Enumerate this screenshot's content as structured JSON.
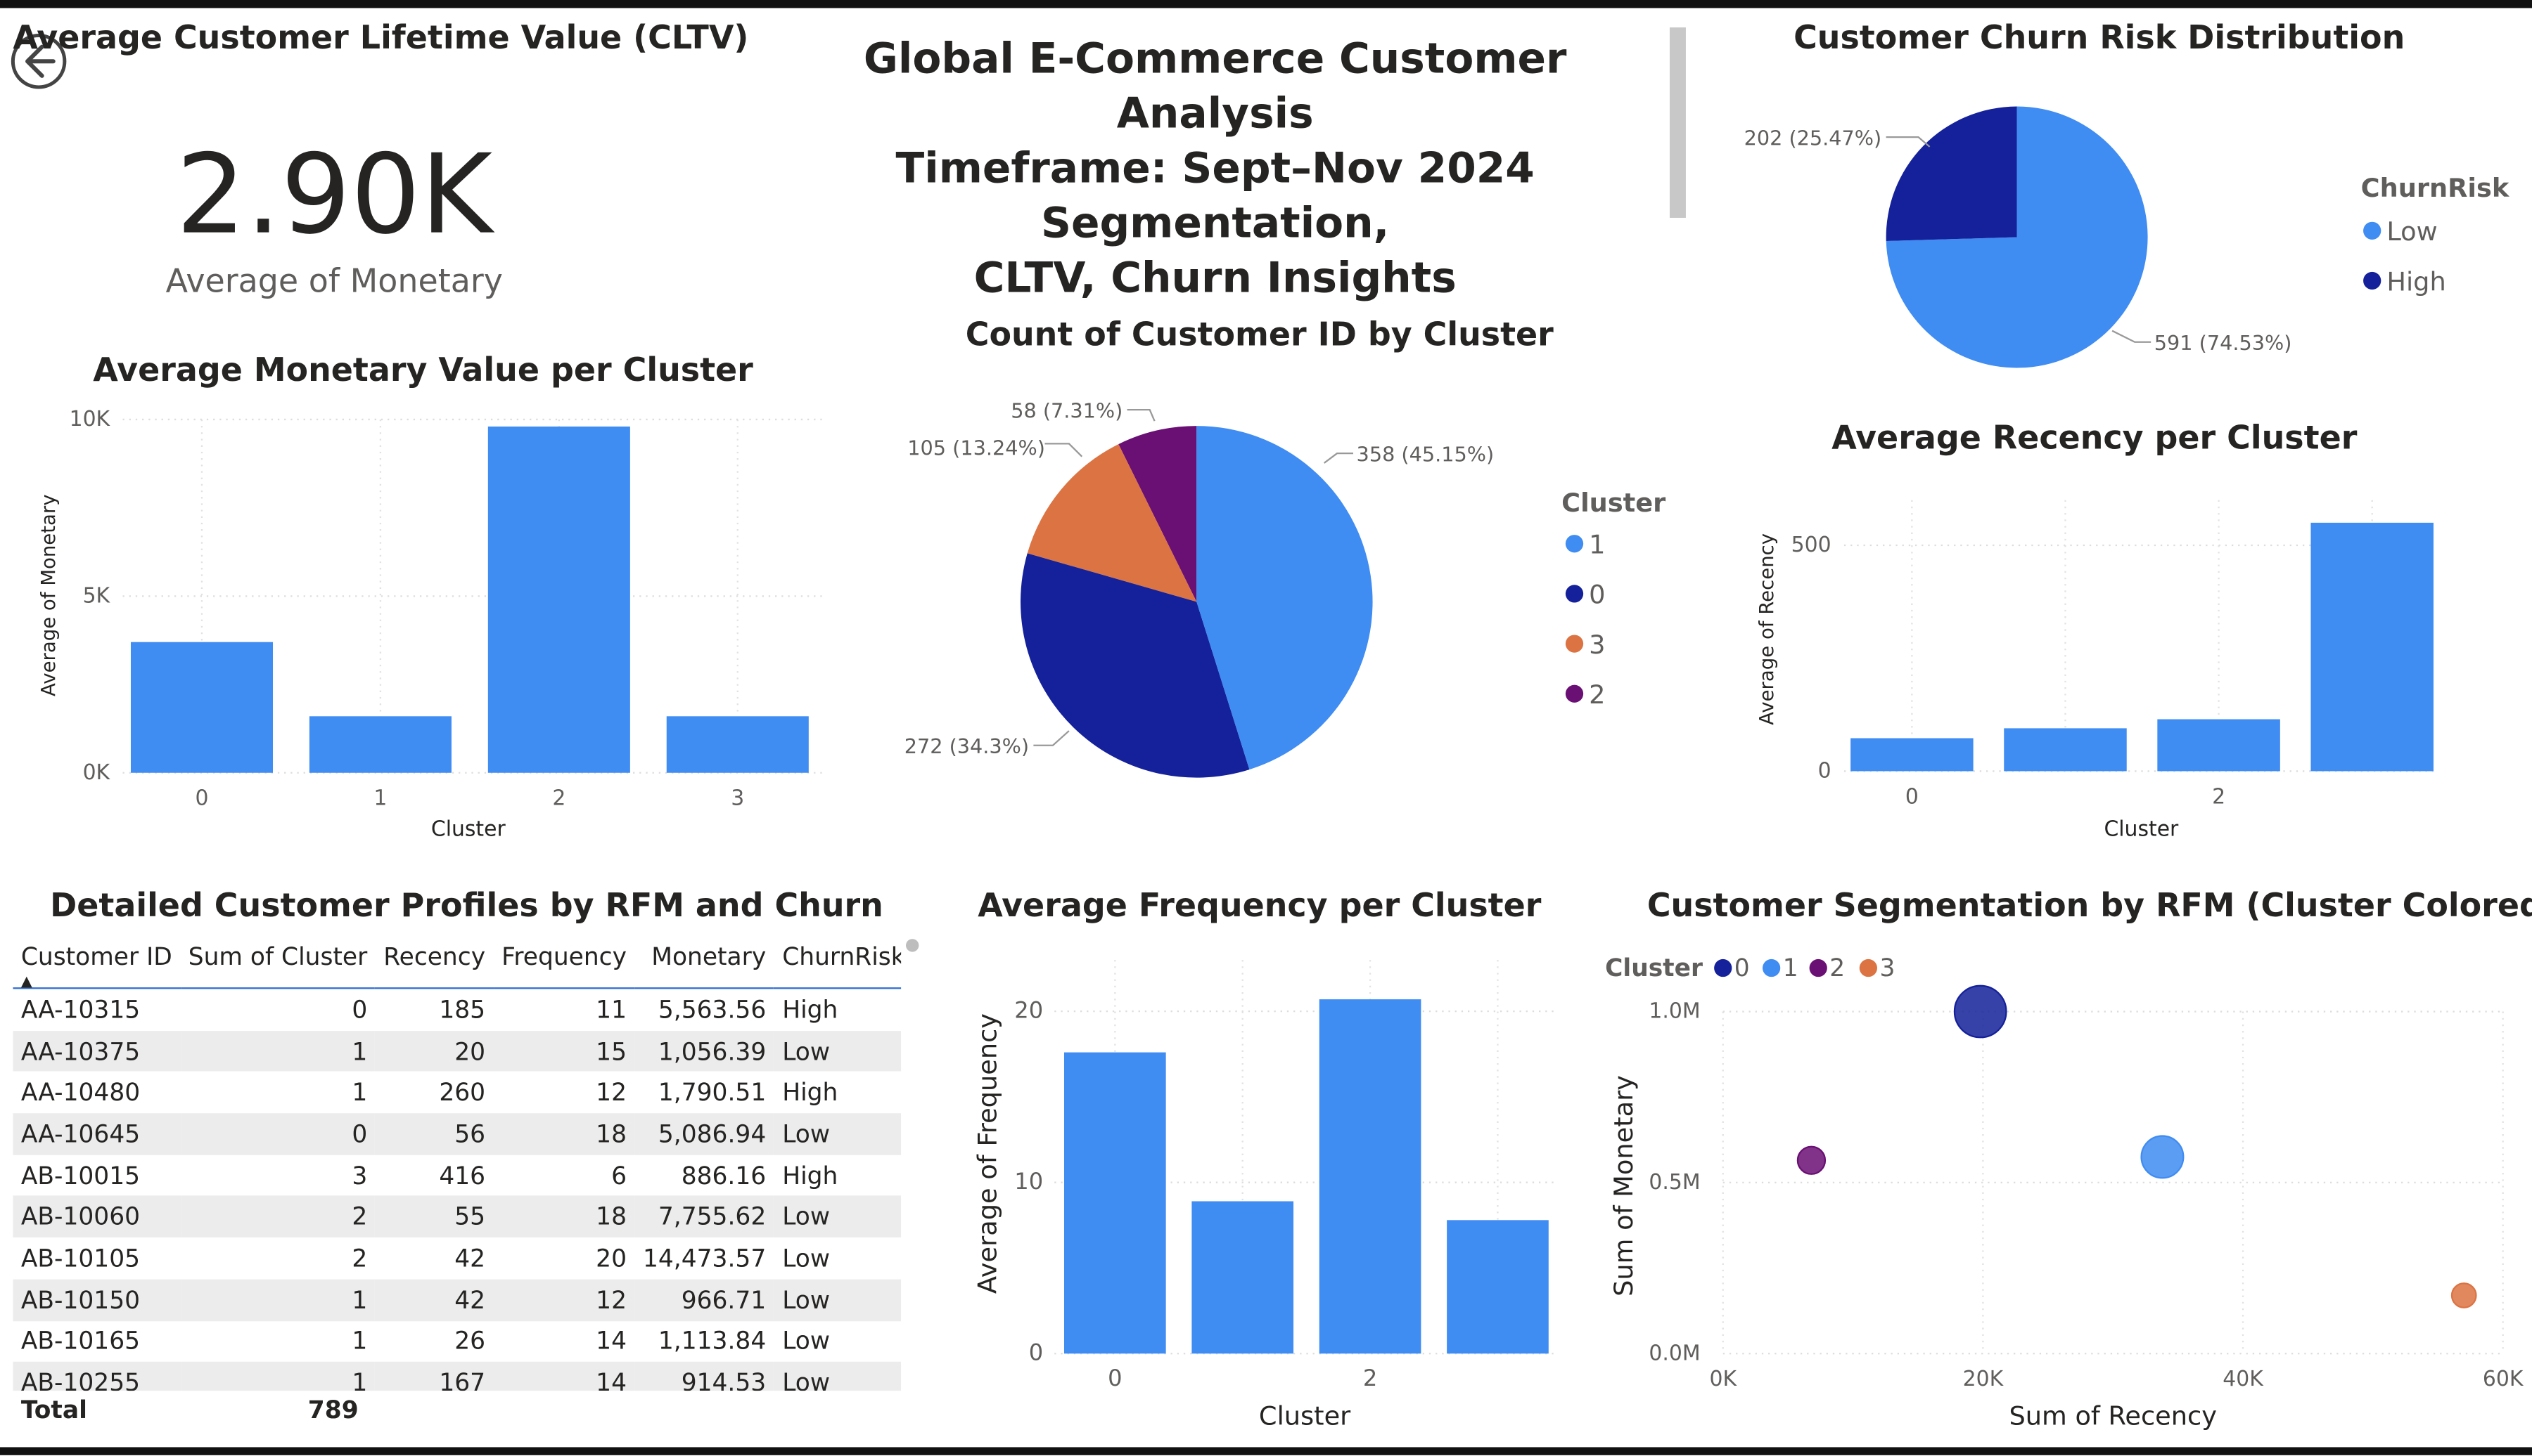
{
  "kpi": {
    "title": "Average Customer Lifetime Value (CLTV)",
    "value": "2.90K",
    "caption": "Average of Monetary"
  },
  "header": {
    "line1": "Global E-Commerce Customer Analysis",
    "line2": "Timeframe: Sept–Nov 2024 Segmentation,",
    "line3": "CLTV, Churn Insights"
  },
  "colors": {
    "light_blue": "#3F8CF2",
    "navy": "#14219A",
    "orange": "#DC7343",
    "purple": "#6A0F73"
  },
  "icons": {
    "back": "back-arrow-icon"
  },
  "charts": {
    "churn": {
      "type": "pie",
      "title": "Customer Churn Risk Distribution",
      "legend_title": "ChurnRisk",
      "legend": [
        "Low",
        "High"
      ],
      "slice_labels": [
        "591 (74.53%)",
        "202 (25.47%)"
      ],
      "values": [
        591,
        202
      ]
    },
    "cluster_count": {
      "type": "pie",
      "title": "Count of Customer ID by Cluster",
      "legend_title": "Cluster",
      "legend": [
        "1",
        "0",
        "3",
        "2"
      ],
      "slice_labels": [
        "358 (45.15%)",
        "272 (34.3%)",
        "105 (13.24%)",
        "58 (7.31%)"
      ],
      "values": [
        358,
        272,
        105,
        58
      ]
    },
    "monetary": {
      "type": "bar",
      "title": "Average Monetary Value per Cluster",
      "xlabel": "Cluster",
      "ylabel": "Average of Monetary",
      "categories": [
        "0",
        "1",
        "2",
        "3"
      ],
      "values": [
        3700,
        1600,
        9800,
        1600
      ],
      "yticks": [
        "0K",
        "5K",
        "10K"
      ],
      "ylim": [
        0,
        10000
      ]
    },
    "recency": {
      "type": "bar",
      "title": "Average Recency per Cluster",
      "xlabel": "Cluster",
      "ylabel": "Average of Recency",
      "tick_labels": [
        "0",
        "2"
      ],
      "values": [
        73,
        95,
        115,
        550
      ],
      "yticks": [
        "0",
        "500"
      ],
      "ylim": [
        0,
        600
      ]
    },
    "frequency": {
      "type": "bar",
      "title": "Average Frequency per Cluster",
      "xlabel": "Cluster",
      "ylabel": "Average of Frequency",
      "tick_labels": [
        "0",
        "2"
      ],
      "values": [
        17.6,
        8.9,
        20.7,
        7.8
      ],
      "yticks": [
        "0",
        "10",
        "20"
      ],
      "ylim": [
        0,
        23
      ]
    },
    "scatter": {
      "type": "scatter",
      "title": "Customer Segmentation by RFM (Cluster Colored)",
      "xlabel": "Sum of Recency",
      "ylabel": "Sum of Monetary",
      "legend_title": "Cluster",
      "legend": [
        "0",
        "1",
        "2",
        "3"
      ],
      "xticks": [
        "0K",
        "20K",
        "40K",
        "60K"
      ],
      "yticks": [
        "0.0M",
        "0.5M",
        "1.0M"
      ],
      "xlim": [
        0,
        60000
      ],
      "ylim": [
        0,
        1000000
      ],
      "points": [
        {
          "cluster": "0",
          "x": 19800,
          "y": 1000000,
          "size": 16
        },
        {
          "cluster": "1",
          "x": 33800,
          "y": 575000,
          "size": 13
        },
        {
          "cluster": "2",
          "x": 6800,
          "y": 565000,
          "size": 8.5
        },
        {
          "cluster": "3",
          "x": 57000,
          "y": 170000,
          "size": 7.5
        }
      ]
    }
  },
  "table": {
    "title": "Detailed Customer Profiles by RFM and Churn",
    "columns": [
      "Customer ID",
      "Sum of Cluster",
      "Recency",
      "Frequency",
      "Monetary",
      "ChurnRisk"
    ],
    "rows": [
      [
        "AA-10315",
        "0",
        "185",
        "11",
        "5,563.56",
        "High"
      ],
      [
        "AA-10375",
        "1",
        "20",
        "15",
        "1,056.39",
        "Low"
      ],
      [
        "AA-10480",
        "1",
        "260",
        "12",
        "1,790.51",
        "High"
      ],
      [
        "AA-10645",
        "0",
        "56",
        "18",
        "5,086.94",
        "Low"
      ],
      [
        "AB-10015",
        "3",
        "416",
        "6",
        "886.16",
        "High"
      ],
      [
        "AB-10060",
        "2",
        "55",
        "18",
        "7,755.62",
        "Low"
      ],
      [
        "AB-10105",
        "2",
        "42",
        "20",
        "14,473.57",
        "Low"
      ],
      [
        "AB-10150",
        "1",
        "42",
        "12",
        "966.71",
        "Low"
      ],
      [
        "AB-10165",
        "1",
        "26",
        "14",
        "1,113.84",
        "Low"
      ],
      [
        "AB-10255",
        "1",
        "167",
        "14",
        "914.53",
        "Low"
      ]
    ],
    "total_label": "Total",
    "total_value": "789"
  }
}
